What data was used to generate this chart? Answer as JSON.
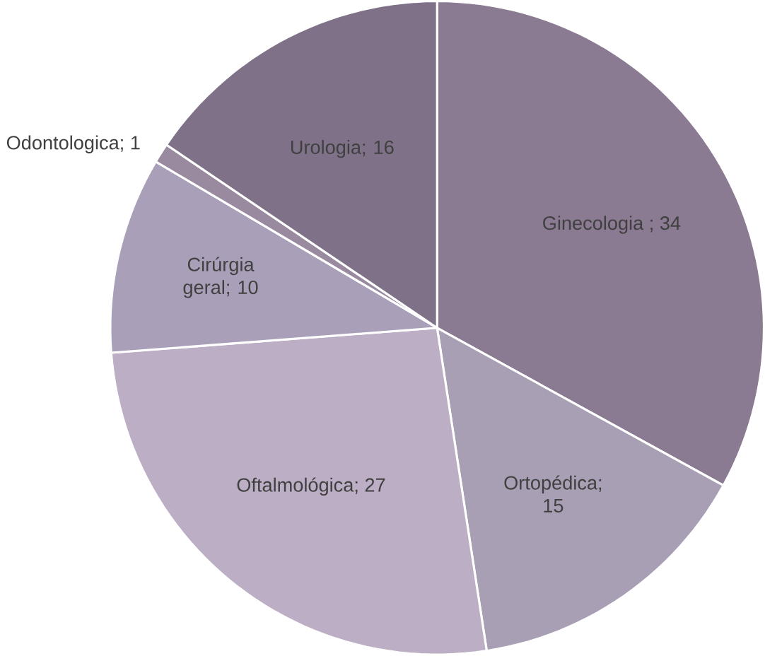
{
  "chart_data": {
    "type": "pie",
    "categories": [
      "Ginecologia ; 34",
      "Ortopédica; 15",
      "Oftalmológica; 27",
      "Cirúrgia geral; 10",
      "Odontologica; 1",
      "Urologia; 16"
    ],
    "values": [
      34,
      15,
      27,
      10,
      1,
      16
    ],
    "colors": [
      "#8a7a92",
      "#a89fb4",
      "#bcaec4",
      "#aa9fb8",
      "#9a8aa0",
      "#7f7288"
    ]
  }
}
